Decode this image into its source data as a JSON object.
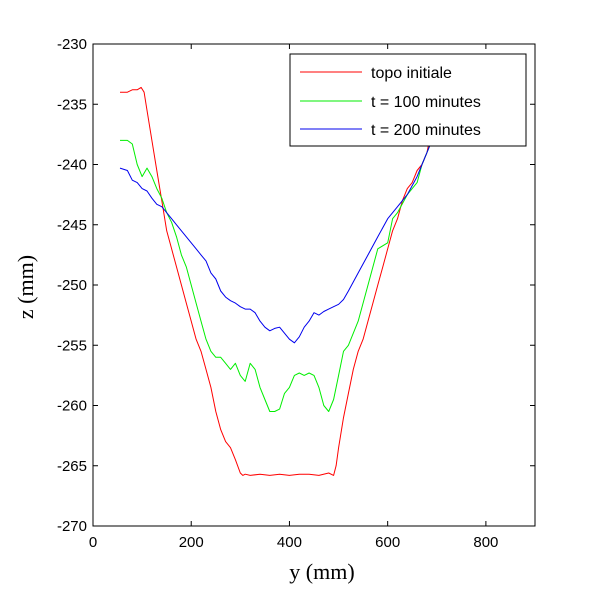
{
  "chart_data": {
    "type": "line",
    "title": "",
    "xlabel": "y (mm)",
    "ylabel": "z (mm)",
    "xlim": [
      0,
      900
    ],
    "ylim": [
      -270,
      -230
    ],
    "xticks": [
      "0",
      "200",
      "400",
      "600",
      "800"
    ],
    "yticks": [
      "-230",
      "-235",
      "-240",
      "-245",
      "-250",
      "-255",
      "-260",
      "-265",
      "-270"
    ],
    "grid": false,
    "legend": {
      "placement": "top-right"
    },
    "series": [
      {
        "name": "topo initiale",
        "color": "#ff0000",
        "x": [
          55,
          70,
          80,
          90,
          98,
          104,
          110,
          120,
          130,
          140,
          150,
          160,
          170,
          180,
          190,
          200,
          210,
          220,
          230,
          240,
          250,
          260,
          270,
          280,
          290,
          300,
          305,
          310,
          320,
          340,
          360,
          380,
          400,
          420,
          440,
          460,
          480,
          490,
          495,
          500,
          510,
          520,
          530,
          540,
          550,
          560,
          570,
          580,
          590,
          600,
          610,
          620,
          630,
          640,
          650,
          660,
          670,
          680,
          685
        ],
        "y": [
          -234,
          -234,
          -233.8,
          -233.8,
          -233.6,
          -234,
          -235.5,
          -238,
          -240.5,
          -243,
          -245.5,
          -247,
          -248.5,
          -250,
          -251.5,
          -253,
          -254.5,
          -255.5,
          -257,
          -258.5,
          -260.5,
          -262,
          -263,
          -263.5,
          -264.5,
          -265.6,
          -265.8,
          -265.7,
          -265.8,
          -265.7,
          -265.8,
          -265.7,
          -265.8,
          -265.7,
          -265.7,
          -265.8,
          -265.6,
          -265.8,
          -265,
          -263.5,
          -261,
          -259,
          -257,
          -255.5,
          -254.5,
          -253,
          -251.5,
          -250,
          -248.5,
          -247,
          -245.5,
          -244.5,
          -243,
          -242,
          -241.5,
          -240.5,
          -240,
          -239,
          -238
        ]
      },
      {
        "name": "t = 100 minutes",
        "color": "#00ee00",
        "x": [
          55,
          70,
          80,
          90,
          100,
          110,
          120,
          130,
          140,
          150,
          160,
          170,
          180,
          190,
          200,
          210,
          220,
          230,
          240,
          250,
          260,
          270,
          280,
          290,
          300,
          310,
          320,
          330,
          340,
          350,
          360,
          370,
          380,
          390,
          400,
          410,
          420,
          430,
          440,
          450,
          460,
          470,
          480,
          490,
          500,
          510,
          520,
          540,
          560,
          580,
          600,
          610,
          620,
          640,
          660,
          670,
          680,
          690
        ],
        "y": [
          -238,
          -238,
          -238.3,
          -240,
          -241,
          -240.3,
          -241,
          -242,
          -242.8,
          -244,
          -244.8,
          -246,
          -247.5,
          -248.5,
          -250,
          -251.5,
          -253,
          -254.5,
          -255.5,
          -256,
          -256,
          -256.5,
          -257,
          -256.5,
          -257.5,
          -258,
          -256.5,
          -257,
          -258.5,
          -259.5,
          -260.5,
          -260.5,
          -260.3,
          -259,
          -258.5,
          -257.5,
          -257.3,
          -257.5,
          -257.3,
          -257.5,
          -258.5,
          -260,
          -260.5,
          -259.5,
          -257.5,
          -255.5,
          -255,
          -253,
          -250,
          -247,
          -246.5,
          -244.5,
          -244,
          -242.5,
          -241.5,
          -240,
          -239,
          -238
        ]
      },
      {
        "name": "t = 200 minutes",
        "color": "#0000ee",
        "x": [
          55,
          70,
          80,
          90,
          100,
          110,
          120,
          130,
          140,
          150,
          160,
          170,
          180,
          190,
          200,
          210,
          220,
          230,
          240,
          250,
          260,
          270,
          280,
          290,
          300,
          310,
          320,
          330,
          340,
          350,
          360,
          370,
          380,
          390,
          400,
          410,
          420,
          430,
          440,
          450,
          460,
          470,
          480,
          490,
          500,
          510,
          520,
          540,
          560,
          580,
          600,
          620,
          640,
          660,
          670,
          680,
          690
        ],
        "y": [
          -240.3,
          -240.5,
          -241.3,
          -241.5,
          -242,
          -242.2,
          -242.8,
          -243.3,
          -243.5,
          -244,
          -244.5,
          -245,
          -245.5,
          -246,
          -246.5,
          -247,
          -247.5,
          -248,
          -249,
          -249.5,
          -250.5,
          -251,
          -251.3,
          -251.5,
          -251.8,
          -252,
          -252,
          -252.3,
          -253,
          -253.5,
          -253.8,
          -253.6,
          -253.5,
          -254,
          -254.5,
          -254.8,
          -254.3,
          -253.5,
          -253,
          -252.3,
          -252.5,
          -252.2,
          -252,
          -251.8,
          -251.6,
          -251.2,
          -250.5,
          -249,
          -247.5,
          -246,
          -244.5,
          -243.5,
          -242.5,
          -241,
          -240,
          -239,
          -238
        ]
      }
    ]
  }
}
